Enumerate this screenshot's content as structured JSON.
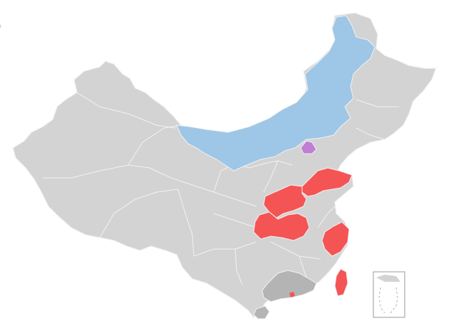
{
  "corner_label": ")",
  "colors": {
    "default": "#d3d3d3",
    "border": "#f2f2f2",
    "highlight_red": "#f55454",
    "highlight_blue": "#9ec6e6",
    "highlight_purple": "#c07fd4",
    "highlight_dark": "#b4b4b4"
  },
  "regions": [
    {
      "name": "inner-mongolia",
      "fill": "highlight_blue"
    },
    {
      "name": "beijing",
      "fill": "highlight_purple"
    },
    {
      "name": "shandong",
      "fill": "highlight_red"
    },
    {
      "name": "henan",
      "fill": "highlight_red"
    },
    {
      "name": "hubei",
      "fill": "highlight_red"
    },
    {
      "name": "zhejiang",
      "fill": "highlight_red"
    },
    {
      "name": "taiwan",
      "fill": "highlight_red"
    },
    {
      "name": "guangdong",
      "fill": "highlight_dark"
    },
    {
      "name": "hainan",
      "fill": "highlight_dark"
    }
  ]
}
